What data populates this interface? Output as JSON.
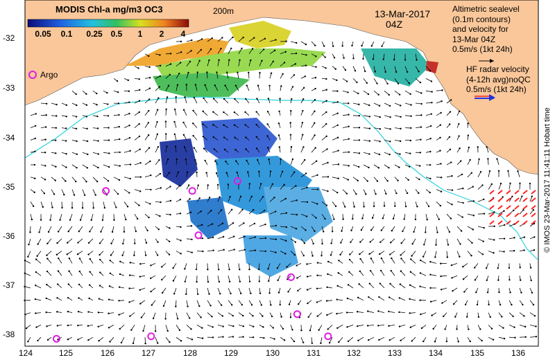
{
  "colorbar": {
    "title": "MODIS Chl-a mg/m3 OC3",
    "ticks": [
      "0.05",
      "0.1",
      "0.25",
      "0.5",
      "1",
      "2",
      "4"
    ]
  },
  "map": {
    "date": "13-Mar-2017",
    "hour": "04Z",
    "contour_label": "200m",
    "lon_ticks": [
      "124",
      "125",
      "126",
      "127",
      "128",
      "129",
      "130",
      "131",
      "132",
      "133",
      "134",
      "135",
      "136"
    ],
    "lat_ticks": [
      "-32",
      "-33",
      "-34",
      "-35",
      "-36",
      "-37",
      "-38"
    ],
    "argo_label": "Argo",
    "argo_floats": [
      {
        "lon": 125.95,
        "lat": -35.1
      },
      {
        "lon": 128.05,
        "lat": -35.1
      },
      {
        "lon": 129.15,
        "lat": -34.9
      },
      {
        "lon": 128.2,
        "lat": -36.0
      },
      {
        "lon": 130.45,
        "lat": -36.85
      },
      {
        "lon": 130.6,
        "lat": -37.6
      },
      {
        "lon": 124.75,
        "lat": -38.1
      },
      {
        "lon": 127.05,
        "lat": -38.05
      },
      {
        "lon": 131.35,
        "lat": -38.05
      }
    ]
  },
  "legend": {
    "altimetry": [
      "Altimetric sealevel",
      "(0.1m contours)",
      "and velocity for",
      "13-Mar 04Z",
      "0.5m/s (1kt 24h)"
    ],
    "hf_radar": [
      "HF radar velocity",
      "(4-12h avg)noQC",
      "0.5m/s (1kt 24h)"
    ]
  },
  "credit": "© IMOS 23-Mar-2017 11:41:11 Hobart time",
  "colors": {
    "land": "#f9c79a",
    "ocean": "#ffffff",
    "contour": "#26d3db",
    "argo": "#e01ce0",
    "hf_arrows": "#ff2020",
    "hf_legend_arrow": "#2233dd"
  }
}
